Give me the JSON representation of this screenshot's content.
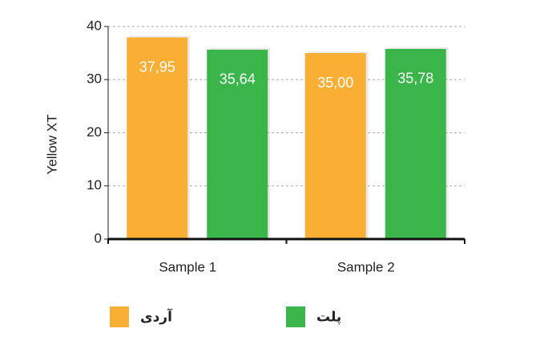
{
  "chart_data": {
    "type": "bar",
    "y_label": "Yellow XT",
    "categories": [
      "Sample 1",
      "Sample 2"
    ],
    "series": [
      {
        "name": "آردی",
        "color": "#f9ae34",
        "values": [
          37.95,
          35.0
        ],
        "value_labels": [
          "37,95",
          "35,00"
        ]
      },
      {
        "name": "پلت",
        "color": "#39b54a",
        "values": [
          35.64,
          35.78
        ],
        "value_labels": [
          "35,64",
          "35,78"
        ]
      }
    ],
    "ylim": [
      0,
      40
    ],
    "yticks": [
      0,
      10,
      20,
      30,
      40
    ],
    "grid": true
  }
}
